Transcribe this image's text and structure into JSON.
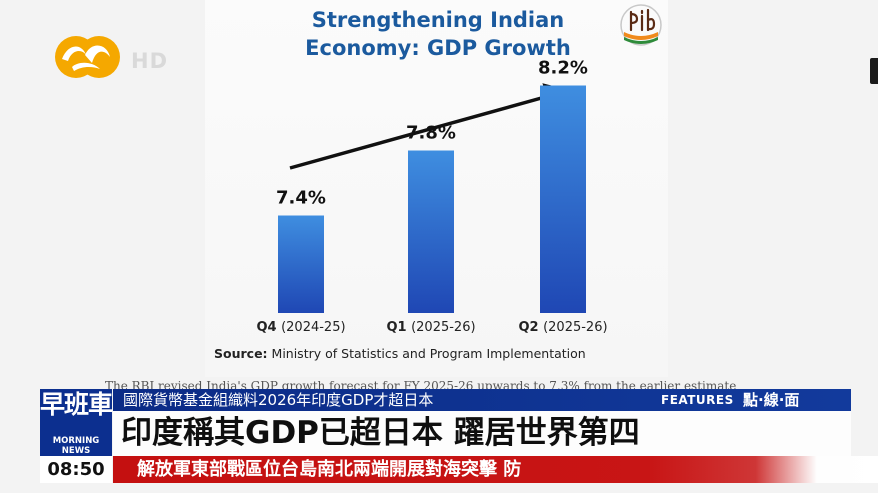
{
  "broadcast": {
    "logo_icon": "phoenix-tv-logo",
    "hd_label": "HD"
  },
  "infographic": {
    "title_line1": "Strengthening Indian",
    "title_line2": "Economy: GDP Growth",
    "pib_logo_icon": "pib-logo",
    "source_label": "Source:",
    "source_text": "Ministry of Statistics and Program Implementation",
    "obscured_text": "The RBI revised India's GDP growth forecast for FY 2025-26 upwards to 7.3% from the earlier estimate"
  },
  "chart_data": {
    "type": "bar",
    "title": "Strengthening Indian Economy: GDP Growth",
    "categories": [
      "Q4 (2024-25)",
      "Q1 (2025-26)",
      "Q2 (2025-26)"
    ],
    "values": [
      7.4,
      7.8,
      8.2
    ],
    "value_labels": [
      "7.4%",
      "7.8%",
      "8.2%"
    ],
    "unit": "%",
    "bar_color_top": "#3f8ee0",
    "bar_color_bottom": "#1f47b4",
    "xlabel": "",
    "ylabel": "",
    "grid": false,
    "trend_arrow": true
  },
  "lower_third": {
    "badge_cn": "早班車",
    "badge_en": "MORNING NEWS",
    "time": "08:50",
    "top_line": "國際貨幣基金組織料2026年印度GDP才超日本",
    "features_label": "FEATURES",
    "segment_label": "點·線·面",
    "headline": "印度稱其GDP已超日本 躍居世界第四",
    "ticker": "解放軍東部戰區位台島南北兩端開展對海突擊 防",
    "colors": {
      "blue": "#0c2f8f",
      "red": "#c41010"
    }
  }
}
